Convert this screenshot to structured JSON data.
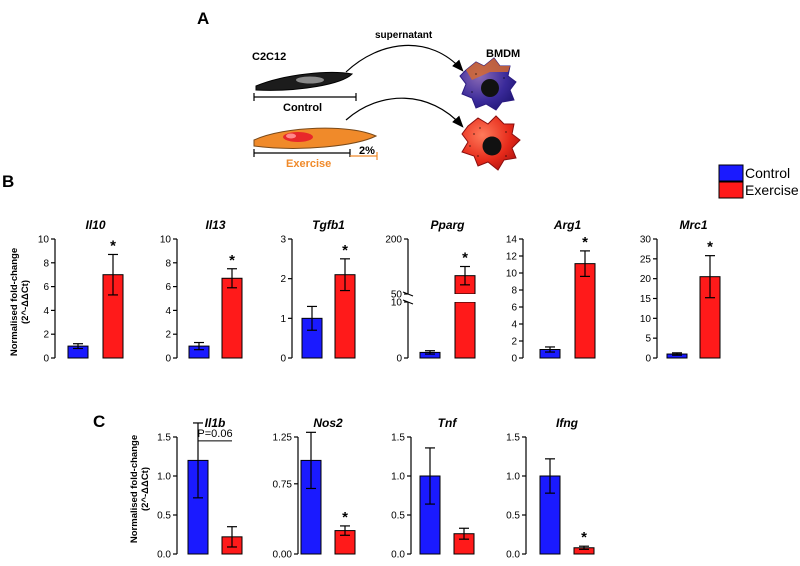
{
  "figure": {
    "panel_a": "A",
    "panel_b": "B",
    "panel_c": "C",
    "schematic": {
      "cell_line": "C2C12",
      "target_cells": "BMDM",
      "arrow_label": "supernatant",
      "control_label": "Control",
      "exercise_label": "Exercise",
      "stretch_label": "2%"
    },
    "legend": [
      {
        "name": "Control",
        "color": "#1a1aff"
      },
      {
        "name": "Exercise",
        "color": "#ff1a1a"
      }
    ],
    "ylabel_line1": "Normalised fold-change",
    "ylabel_line2": "(2^-ΔΔCt)",
    "significance": "*"
  },
  "chart_data": [
    {
      "type": "bar",
      "panel": "B",
      "title": "Il10",
      "categories": [
        "Control",
        "Exercise"
      ],
      "values": [
        1.0,
        7.0
      ],
      "errors": [
        0.2,
        1.7
      ],
      "ylim": [
        0,
        10
      ],
      "yticks": [
        0,
        2,
        4,
        6,
        8,
        10
      ],
      "significance": [
        false,
        true
      ]
    },
    {
      "type": "bar",
      "panel": "B",
      "title": "Il13",
      "categories": [
        "Control",
        "Exercise"
      ],
      "values": [
        1.0,
        6.7
      ],
      "errors": [
        0.3,
        0.8
      ],
      "ylim": [
        0,
        10
      ],
      "yticks": [
        0,
        2,
        4,
        6,
        8,
        10
      ],
      "significance": [
        false,
        true
      ]
    },
    {
      "type": "bar",
      "panel": "B",
      "title": "Tgfb1",
      "categories": [
        "Control",
        "Exercise"
      ],
      "values": [
        1.0,
        2.1
      ],
      "errors": [
        0.3,
        0.4
      ],
      "ylim": [
        0,
        3
      ],
      "yticks": [
        0,
        1,
        2,
        3
      ],
      "significance": [
        false,
        true
      ]
    },
    {
      "type": "bar",
      "panel": "B",
      "title": "Pparg",
      "categories": [
        "Control",
        "Exercise"
      ],
      "values": [
        1.0,
        100
      ],
      "errors": [
        0.3,
        25
      ],
      "broken_axis": true,
      "yticks": [
        0,
        10,
        50,
        200
      ],
      "significance": [
        false,
        true
      ]
    },
    {
      "type": "bar",
      "panel": "B",
      "title": "Arg1",
      "categories": [
        "Control",
        "Exercise"
      ],
      "values": [
        1.0,
        11.1
      ],
      "errors": [
        0.3,
        1.5
      ],
      "ylim": [
        0,
        14
      ],
      "yticks": [
        0,
        2,
        4,
        6,
        8,
        10,
        12,
        14
      ],
      "significance": [
        false,
        true
      ]
    },
    {
      "type": "bar",
      "panel": "B",
      "title": "Mrc1",
      "categories": [
        "Control",
        "Exercise"
      ],
      "values": [
        1.0,
        20.5
      ],
      "errors": [
        0.3,
        5.3
      ],
      "ylim": [
        0,
        30
      ],
      "yticks": [
        0,
        5,
        10,
        15,
        20,
        25,
        30
      ],
      "significance": [
        false,
        true
      ]
    },
    {
      "type": "bar",
      "panel": "C",
      "title": "Il1b",
      "categories": [
        "Control",
        "Exercise"
      ],
      "values": [
        1.2,
        0.22
      ],
      "errors": [
        0.48,
        0.13
      ],
      "ylim": [
        0,
        1.5
      ],
      "yticks": [
        0.0,
        0.5,
        1.0,
        1.5
      ],
      "yticklabels": [
        "0.0",
        "0.5",
        "1.0",
        "1.5"
      ],
      "annotation": "P=0.06",
      "significance": [
        false,
        false
      ]
    },
    {
      "type": "bar",
      "panel": "C",
      "title": "Nos2",
      "categories": [
        "Control",
        "Exercise"
      ],
      "values": [
        1.0,
        0.25
      ],
      "errors": [
        0.3,
        0.05
      ],
      "ylim": [
        0,
        1.25
      ],
      "yticks": [
        0,
        0.75,
        1.25
      ],
      "yticklabels": [
        "0.00",
        "0.75",
        "1.25"
      ],
      "significance": [
        false,
        true
      ]
    },
    {
      "type": "bar",
      "panel": "C",
      "title": "Tnf",
      "categories": [
        "Control",
        "Exercise"
      ],
      "values": [
        1.0,
        0.26
      ],
      "errors": [
        0.36,
        0.07
      ],
      "ylim": [
        0,
        1.5
      ],
      "yticks": [
        0.0,
        0.5,
        1.0,
        1.5
      ],
      "yticklabels": [
        "0.0",
        "0.5",
        "1.0",
        "1.5"
      ],
      "significance": [
        false,
        false
      ]
    },
    {
      "type": "bar",
      "panel": "C",
      "title": "Ifng",
      "categories": [
        "Control",
        "Exercise"
      ],
      "values": [
        1.0,
        0.08
      ],
      "errors": [
        0.22,
        0.02
      ],
      "ylim": [
        0,
        1.5
      ],
      "yticks": [
        0.0,
        0.5,
        1.0,
        1.5
      ],
      "yticklabels": [
        "0.0",
        "0.5",
        "1.0",
        "1.5"
      ],
      "significance": [
        false,
        true
      ]
    }
  ]
}
